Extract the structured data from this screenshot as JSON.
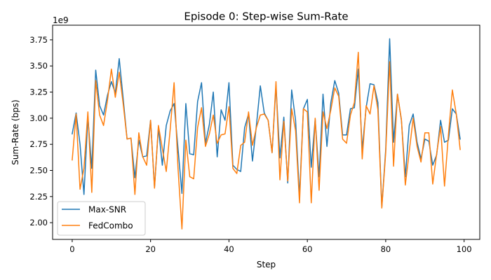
{
  "chart_data": {
    "type": "line",
    "title": "Episode 0: Step-wise Sum-Rate",
    "xlabel": "Step",
    "ylabel": "Sum-Rate (bps)",
    "y_offset_label": "1e9",
    "xlim": [
      -5,
      104
    ],
    "ylim": [
      1.84,
      3.89
    ],
    "x_ticks": [
      0,
      20,
      40,
      60,
      80,
      100
    ],
    "y_ticks": [
      2.0,
      2.25,
      2.5,
      2.75,
      3.0,
      3.25,
      3.5,
      3.75
    ],
    "y_tick_labels": [
      "2.00",
      "2.25",
      "2.50",
      "2.75",
      "3.00",
      "3.25",
      "3.50",
      "3.75"
    ],
    "grid": false,
    "legend_position": "lower-left",
    "x": [
      0,
      1,
      2,
      3,
      4,
      5,
      6,
      7,
      8,
      9,
      10,
      11,
      12,
      13,
      14,
      15,
      16,
      17,
      18,
      19,
      20,
      21,
      22,
      23,
      24,
      25,
      26,
      27,
      28,
      29,
      30,
      31,
      32,
      33,
      34,
      35,
      36,
      37,
      38,
      39,
      40,
      41,
      42,
      43,
      44,
      45,
      46,
      47,
      48,
      49,
      50,
      51,
      52,
      53,
      54,
      55,
      56,
      57,
      58,
      59,
      60,
      61,
      62,
      63,
      64,
      65,
      66,
      67,
      68,
      69,
      70,
      71,
      72,
      73,
      74,
      75,
      76,
      77,
      78,
      79,
      80,
      81,
      82,
      83,
      84,
      85,
      86,
      87,
      88,
      89,
      90,
      91,
      92,
      93,
      94,
      95,
      96,
      97,
      98,
      99
    ],
    "series": [
      {
        "name": "Max-SNR",
        "color": "#1f77b4",
        "values": [
          2.85,
          3.05,
          2.75,
          2.27,
          3.01,
          2.52,
          3.46,
          3.12,
          3.03,
          3.22,
          3.35,
          3.24,
          3.57,
          3.19,
          2.8,
          2.81,
          2.43,
          2.79,
          2.63,
          2.64,
          2.98,
          2.34,
          2.91,
          2.55,
          2.93,
          3.07,
          3.14,
          2.71,
          2.28,
          3.14,
          2.66,
          2.65,
          3.16,
          3.34,
          2.76,
          2.94,
          3.25,
          2.63,
          3.08,
          2.98,
          3.34,
          2.55,
          2.51,
          2.49,
          2.91,
          3.04,
          2.59,
          2.93,
          3.31,
          3.05,
          2.98,
          2.67,
          3.31,
          2.62,
          3.01,
          2.38,
          3.27,
          2.98,
          2.25,
          3.09,
          3.18,
          2.53,
          2.99,
          2.44,
          3.23,
          2.73,
          3.15,
          3.36,
          3.24,
          2.84,
          2.84,
          3.09,
          3.1,
          3.47,
          2.7,
          3.1,
          3.33,
          3.32,
          3.15,
          2.15,
          2.7,
          3.76,
          2.77,
          3.23,
          2.98,
          2.44,
          2.93,
          3.04,
          2.77,
          2.61,
          2.8,
          2.78,
          2.55,
          2.65,
          2.98,
          2.77,
          2.79,
          3.09,
          3.04,
          2.8
        ]
      },
      {
        "name": "FedCombo",
        "color": "#ff7f0e",
        "values": [
          2.6,
          3.04,
          2.32,
          2.52,
          3.06,
          2.29,
          3.36,
          3.03,
          2.93,
          3.17,
          3.47,
          3.2,
          3.44,
          3.14,
          2.8,
          2.81,
          2.27,
          2.86,
          2.63,
          2.55,
          2.98,
          2.33,
          2.93,
          2.71,
          2.49,
          2.89,
          3.34,
          2.52,
          1.94,
          2.79,
          2.44,
          2.42,
          2.91,
          3.1,
          2.73,
          2.85,
          3.03,
          2.76,
          2.84,
          2.85,
          3.11,
          2.52,
          2.47,
          2.74,
          2.77,
          3.06,
          2.74,
          2.91,
          3.03,
          3.04,
          2.98,
          2.67,
          3.35,
          2.41,
          2.97,
          2.4,
          3.09,
          2.88,
          2.19,
          3.09,
          3.06,
          2.19,
          3.0,
          2.31,
          3.06,
          2.9,
          3.08,
          3.29,
          3.21,
          2.8,
          2.76,
          3.03,
          3.15,
          3.63,
          2.61,
          3.12,
          3.04,
          3.31,
          3.08,
          2.14,
          2.67,
          3.54,
          2.54,
          3.23,
          2.99,
          2.36,
          2.68,
          3.0,
          2.73,
          2.58,
          2.86,
          2.86,
          2.37,
          2.66,
          2.92,
          2.35,
          2.84,
          3.27,
          3.04,
          2.7
        ]
      }
    ]
  }
}
